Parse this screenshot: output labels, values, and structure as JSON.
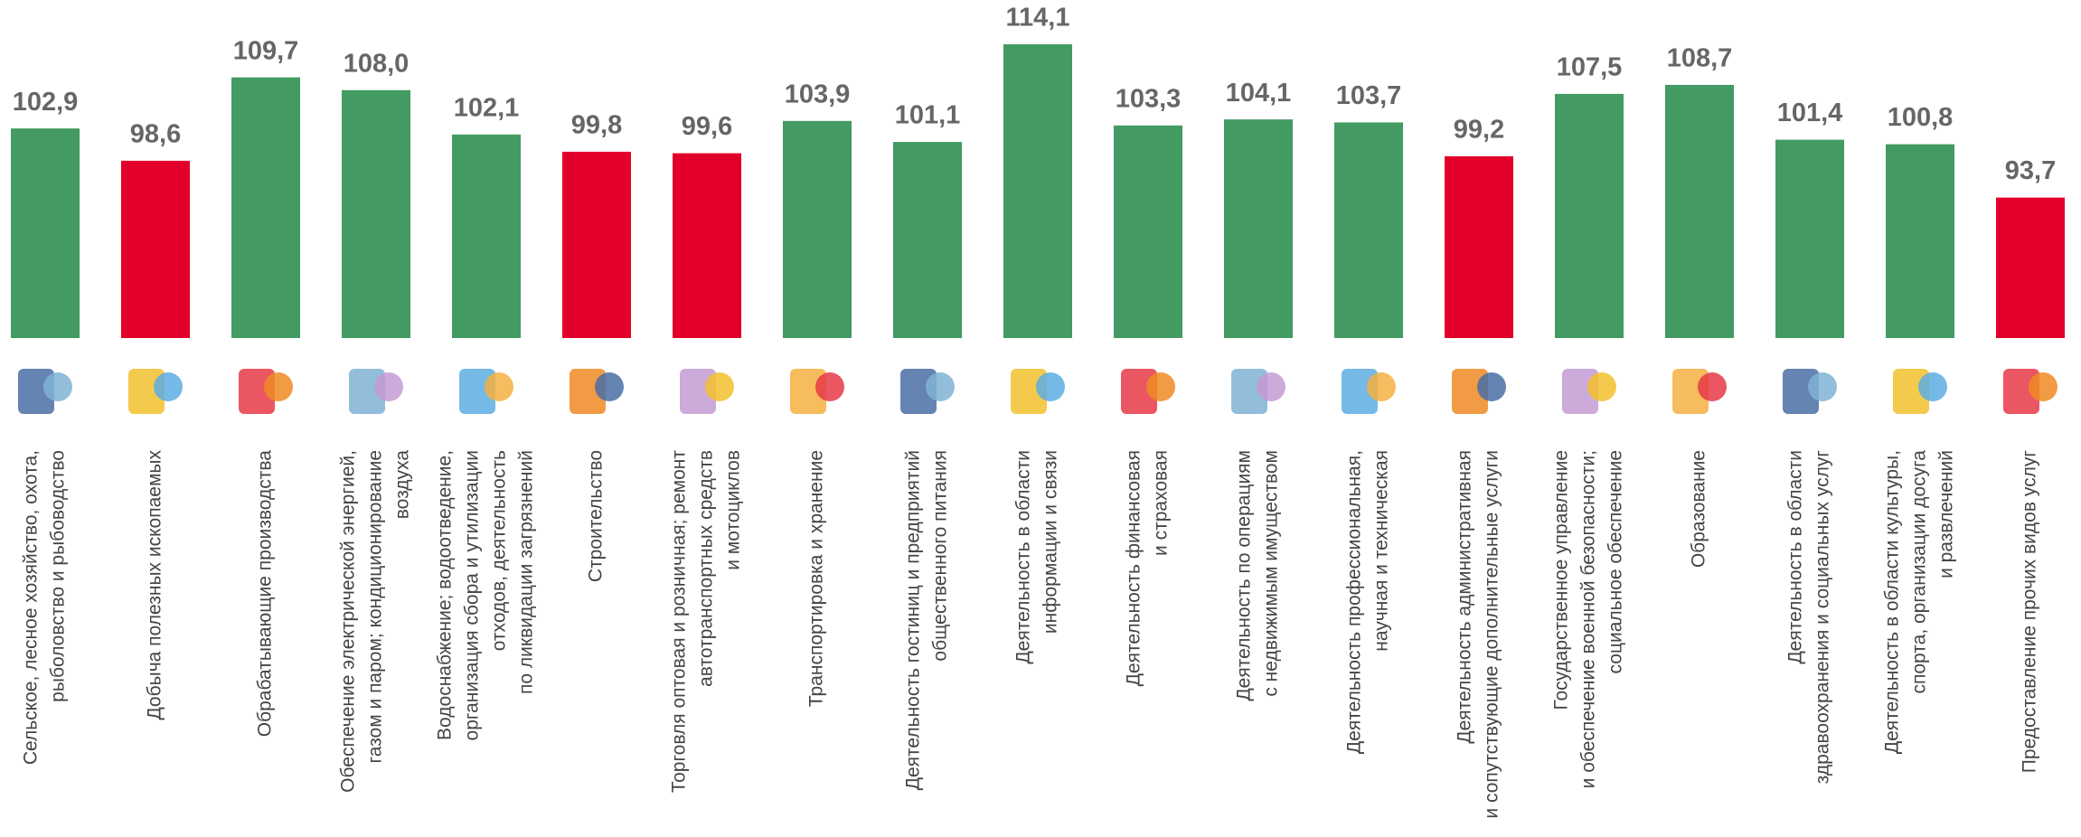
{
  "chart_data": {
    "type": "bar",
    "categories": [
      [
        "Сельское, лесное хозяйство, охота,",
        "рыболовство и рыбоводство"
      ],
      [
        "Добыча полезных ископаемых"
      ],
      [
        "Обрабатывающие производства"
      ],
      [
        "Обеспечение электрической энергией,",
        "газом и паром; кондиционирование",
        "воздуха"
      ],
      [
        "Водоснабжение; водоотведение,",
        "организация сбора и утилизации",
        "отходов, деятельность",
        "по ликвидации загрязнений"
      ],
      [
        "Строительство"
      ],
      [
        "Торговля оптовая и розничная; ремонт",
        "автотранспортных средств",
        "и мотоциклов"
      ],
      [
        "Транспортировка и хранение"
      ],
      [
        "Деятельность гостиниц и предприятий",
        "общественного питания"
      ],
      [
        "Деятельность в области",
        "информации и связи"
      ],
      [
        "Деятельность финансовая",
        "и страховая"
      ],
      [
        "Деятельность по операциям",
        "с недвижимым имуществом"
      ],
      [
        "Деятельность профессиональная,",
        "научная и  техническая"
      ],
      [
        "Деятельность административная",
        "и сопутствующие дополнительные услуги"
      ],
      [
        "Государственное управление",
        "и обеспечение военной безопасности;",
        "социальное обеспечение"
      ],
      [
        "Образование"
      ],
      [
        "Деятельность  в области",
        "здравоохранения и социальных услуг"
      ],
      [
        "Деятельность в области культуры,",
        "спорта, организации досуга",
        "и развлечений"
      ],
      [
        "Предоставление прочих видов услуг"
      ]
    ],
    "values": [
      102.9,
      98.6,
      109.7,
      108.0,
      102.1,
      99.8,
      99.6,
      103.9,
      101.1,
      114.1,
      103.3,
      104.1,
      103.7,
      99.2,
      107.5,
      108.7,
      101.4,
      100.8,
      93.7
    ],
    "value_labels": [
      "102,9",
      "98,6",
      "109,7",
      "108,0",
      "102,1",
      "99,8",
      "99,6",
      "103,9",
      "101,1",
      "114,1",
      "103,3",
      "104,1",
      "103,7",
      "99,2",
      "107,5",
      "108,7",
      "101,4",
      "100,8",
      "93,7"
    ],
    "colors": [
      "#439a62",
      "#e2002a",
      "#439a62",
      "#439a62",
      "#439a62",
      "#e2002a",
      "#e2002a",
      "#439a62",
      "#439a62",
      "#439a62",
      "#439a62",
      "#439a62",
      "#439a62",
      "#e2002a",
      "#439a62",
      "#439a62",
      "#439a62",
      "#439a62",
      "#e2002a"
    ],
    "ylim": [
      75,
      120
    ]
  }
}
